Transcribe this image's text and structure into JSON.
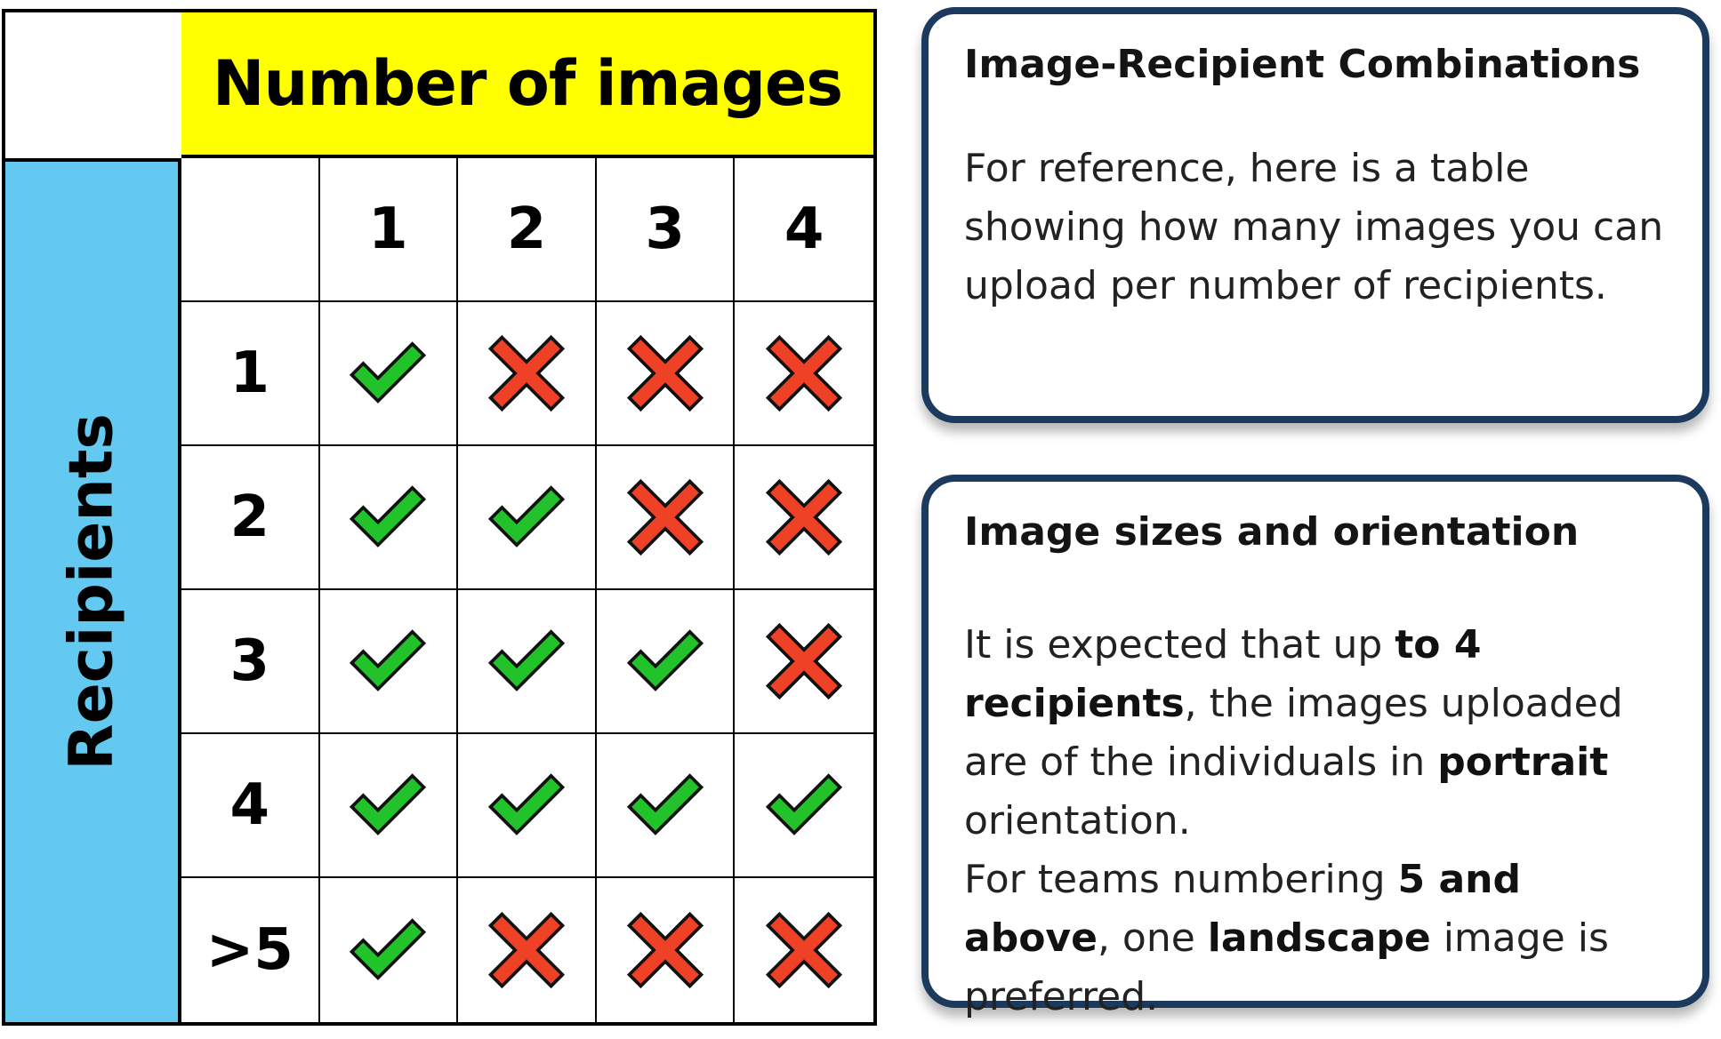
{
  "table": {
    "column_axis_title": "Number of images",
    "row_axis_title": "Recipients",
    "column_headers": [
      "1",
      "2",
      "3",
      "4"
    ],
    "rows": [
      {
        "label": "1",
        "cells": [
          "check",
          "cross",
          "cross",
          "cross"
        ]
      },
      {
        "label": "2",
        "cells": [
          "check",
          "check",
          "cross",
          "cross"
        ]
      },
      {
        "label": "3",
        "cells": [
          "check",
          "check",
          "check",
          "cross"
        ]
      },
      {
        "label": "4",
        "cells": [
          "check",
          "check",
          "check",
          "check"
        ]
      },
      {
        "label": ">5",
        "cells": [
          "check",
          "cross",
          "cross",
          "cross"
        ]
      }
    ]
  },
  "colors": {
    "header_band": "#ffff00",
    "side_band": "#63c9f0",
    "check": "#22c22a",
    "cross": "#ef4125",
    "card_border": "#1b3a5e"
  },
  "card1": {
    "title": "Image-Recipient Combinations",
    "body": "For reference, here is a table showing how many images you can upload per number of recipients."
  },
  "card2": {
    "title": "Image sizes and orientation",
    "p1": [
      {
        "text": "It is expected that up ",
        "bold": false
      },
      {
        "text": "to 4 recipients",
        "bold": true
      },
      {
        "text": ", the images uploaded are of the individuals in ",
        "bold": false
      },
      {
        "text": "portrait",
        "bold": true
      },
      {
        "text": " orientation.",
        "bold": false
      }
    ],
    "p2": [
      {
        "text": "For teams numbering ",
        "bold": false
      },
      {
        "text": "5 and above",
        "bold": true
      },
      {
        "text": ", one ",
        "bold": false
      },
      {
        "text": "landscape",
        "bold": true
      },
      {
        "text": " image is preferred.",
        "bold": false
      }
    ]
  }
}
